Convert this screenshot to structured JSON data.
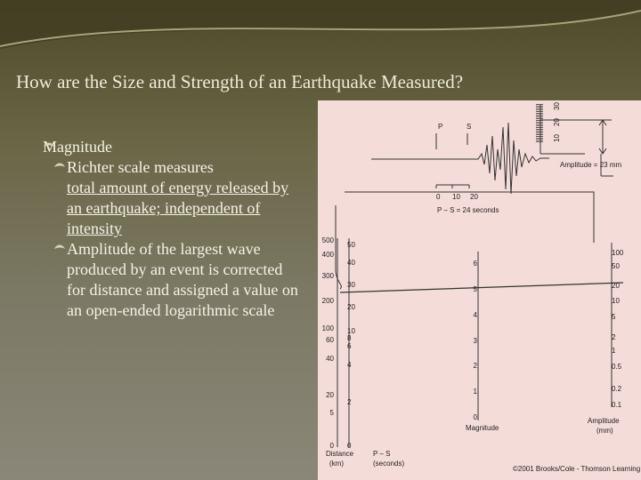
{
  "slide": {
    "title": "How are the Size and Strength of an Earthquake Measured?",
    "bullet": "Magnitude",
    "sub_bullets": [
      {
        "text": "Richter scale measures",
        "underlined": "total amount of energy released by an earthquake; independent of intensity"
      },
      {
        "text": "Amplitude of the largest wave produced by an event is corrected for distance and assigned a value on an open-ended logarithmic scale"
      }
    ]
  },
  "figure": {
    "seismogram_labels": [
      "P",
      "S"
    ],
    "ruler_ticks": [
      "10",
      "20",
      "30"
    ],
    "amplitude_note": "Amplitude = 23 mm",
    "time_ticks": [
      "0",
      "10",
      "20"
    ],
    "ps_note": "P – S = 24 seconds",
    "distance_scale": [
      "500",
      "400",
      "300",
      "200",
      "100",
      "60",
      "40",
      "20",
      "5",
      "0"
    ],
    "ps_scale": [
      "50",
      "40",
      "30",
      "20",
      "10",
      "8",
      "6",
      "4",
      "2",
      "0"
    ],
    "magnitude_scale": [
      "6",
      "5",
      "4",
      "3",
      "2",
      "1",
      "0"
    ],
    "amplitude_scale": [
      "100",
      "50",
      "20",
      "10",
      "5",
      "2",
      "1",
      "0.5",
      "0.2",
      "0.1"
    ],
    "distance_title": [
      "Distance",
      "(km)"
    ],
    "ps_title": [
      "P – S",
      "(seconds)"
    ],
    "magnitude_title": "Magnitude",
    "amplitude_title": [
      "Amplitude",
      "(mm)"
    ],
    "credit": "©2001 Brooks/Cole - Thomson Learning"
  }
}
